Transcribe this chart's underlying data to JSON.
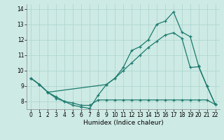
{
  "xlabel": "Humidex (Indice chaleur)",
  "xlim": [
    -0.5,
    22.5
  ],
  "ylim": [
    7.5,
    14.3
  ],
  "yticks": [
    8,
    9,
    10,
    11,
    12,
    13,
    14
  ],
  "xticks": [
    0,
    1,
    2,
    3,
    4,
    5,
    6,
    7,
    8,
    9,
    10,
    11,
    12,
    13,
    14,
    15,
    16,
    17,
    18,
    19,
    20,
    21,
    22
  ],
  "bg_color": "#ceeae4",
  "grid_color": "#aad4ce",
  "line_color": "#1a7a6e",
  "line1_x": [
    0,
    1,
    2,
    3,
    4,
    5,
    6,
    7,
    8,
    9,
    10,
    11,
    12,
    13,
    14,
    15,
    16,
    17,
    18,
    19,
    20,
    21,
    22
  ],
  "line1_y": [
    9.5,
    9.1,
    8.6,
    8.2,
    8.0,
    7.75,
    7.65,
    7.55,
    8.4,
    9.1,
    9.5,
    10.2,
    11.3,
    11.55,
    12.0,
    13.0,
    13.2,
    13.8,
    12.5,
    12.2,
    10.3,
    9.0,
    7.8
  ],
  "line2_x": [
    0,
    1,
    2,
    9,
    10,
    11,
    12,
    13,
    14,
    15,
    16,
    17,
    18,
    19,
    20,
    21,
    22
  ],
  "line2_y": [
    9.5,
    9.1,
    8.6,
    9.1,
    9.5,
    10.0,
    10.5,
    11.0,
    11.5,
    11.9,
    12.3,
    12.45,
    12.1,
    10.2,
    10.25,
    9.0,
    7.8
  ],
  "line3_x": [
    0,
    1,
    2,
    3,
    4,
    5,
    6,
    7,
    8,
    9,
    10,
    11,
    12,
    13,
    14,
    15,
    16,
    17,
    18,
    19,
    20,
    21,
    22
  ],
  "line3_y": [
    9.5,
    9.1,
    8.6,
    8.3,
    8.0,
    7.9,
    7.75,
    7.75,
    8.1,
    8.1,
    8.1,
    8.1,
    8.1,
    8.1,
    8.1,
    8.1,
    8.1,
    8.1,
    8.1,
    8.1,
    8.1,
    8.1,
    7.8
  ]
}
